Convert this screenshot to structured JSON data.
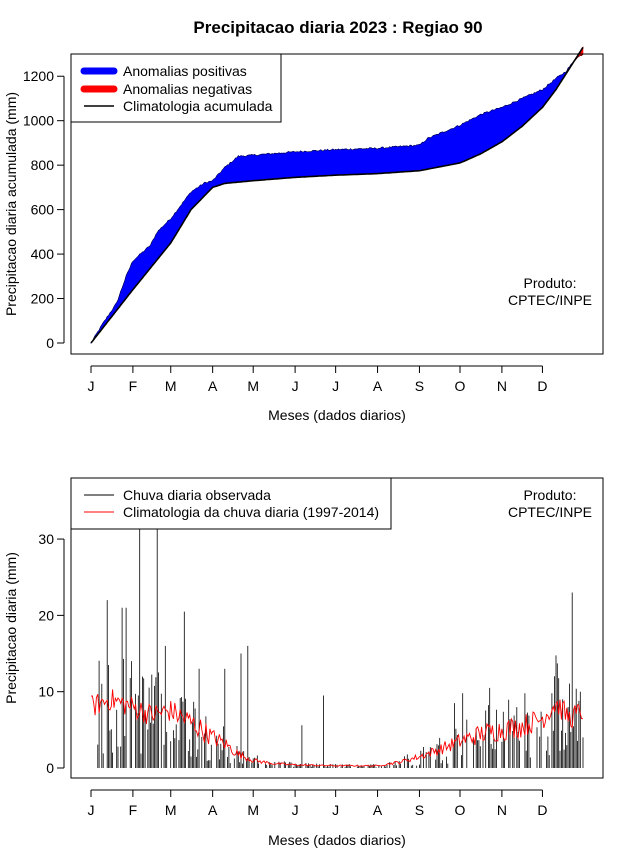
{
  "page_title": "Precipitacao diaria 2023 : Regiao 90",
  "colors": {
    "positive": "#0000ff",
    "negative": "#ff0000",
    "climatology_line": "#000000",
    "observed": "#000000",
    "climatology_daily": "#ff0000"
  },
  "chart_data": [
    {
      "type": "area",
      "title": "Precipitacao diaria 2023 : Regiao 90",
      "xlabel": "Meses (dados diarios)",
      "ylabel": "Precipitacao diaria acumulada (mm)",
      "xlim": [
        1,
        365
      ],
      "ylim": [
        0,
        1300
      ],
      "yticks": [
        0,
        200,
        400,
        600,
        800,
        1000,
        1200
      ],
      "month_ticks": [
        1,
        32,
        60,
        91,
        121,
        152,
        182,
        213,
        244,
        274,
        305,
        335
      ],
      "month_labels": [
        "J",
        "F",
        "M",
        "A",
        "M",
        "J",
        "J",
        "A",
        "S",
        "O",
        "N",
        "D"
      ],
      "legend": [
        "Anomalias positivas",
        "Anomalias negativas",
        "Climatologia acumulada"
      ],
      "annotation": [
        "Produto:",
        "CPTEC/INPE"
      ],
      "climatology_cumulative": {
        "x": [
          1,
          32,
          60,
          75,
          91,
          100,
          121,
          152,
          182,
          213,
          244,
          274,
          289,
          305,
          320,
          335,
          345,
          365
        ],
        "y": [
          0,
          240,
          450,
          600,
          700,
          718,
          730,
          745,
          755,
          762,
          775,
          810,
          850,
          905,
          975,
          1060,
          1140,
          1330
        ]
      },
      "observed_cumulative": {
        "x": [
          1,
          10,
          20,
          27,
          32,
          45,
          50,
          60,
          75,
          85,
          91,
          100,
          110,
          121,
          152,
          182,
          213,
          244,
          250,
          274,
          290,
          305,
          320,
          335,
          345,
          352,
          360,
          365
        ],
        "y": [
          0,
          90,
          180,
          300,
          370,
          440,
          500,
          560,
          680,
          720,
          730,
          790,
          840,
          845,
          860,
          870,
          876,
          890,
          920,
          980,
          1030,
          1060,
          1100,
          1140,
          1190,
          1220,
          1280,
          1300
        ]
      }
    },
    {
      "type": "bar",
      "title": "",
      "xlabel": "Meses (dados diarios)",
      "ylabel": "Precipitacao diaria (mm)",
      "xlim": [
        1,
        365
      ],
      "ylim": [
        0,
        38
      ],
      "yticks": [
        0,
        10,
        20,
        30
      ],
      "month_ticks": [
        1,
        32,
        60,
        91,
        121,
        152,
        182,
        213,
        244,
        274,
        305,
        335
      ],
      "month_labels": [
        "J",
        "F",
        "M",
        "A",
        "M",
        "J",
        "J",
        "A",
        "S",
        "O",
        "N",
        "D"
      ],
      "legend": [
        "Chuva diaria observada",
        "Climatologia da chuva diaria (1997-2014)"
      ],
      "annotation": [
        "Produto:",
        "CPTEC/INPE"
      ],
      "observed_peaks": [
        {
          "day": 13,
          "value": 22
        },
        {
          "day": 24,
          "value": 21
        },
        {
          "day": 27,
          "value": 21
        },
        {
          "day": 37,
          "value": 38
        },
        {
          "day": 50,
          "value": 38
        },
        {
          "day": 56,
          "value": 16
        },
        {
          "day": 70,
          "value": 20.5
        },
        {
          "day": 81,
          "value": 13
        },
        {
          "day": 100,
          "value": 13
        },
        {
          "day": 112,
          "value": 15
        },
        {
          "day": 117,
          "value": 16
        },
        {
          "day": 157,
          "value": 5.6
        },
        {
          "day": 173,
          "value": 9.5
        },
        {
          "day": 270,
          "value": 8.5
        },
        {
          "day": 276,
          "value": 9.8
        },
        {
          "day": 296,
          "value": 10.5
        },
        {
          "day": 322,
          "value": 9.8
        },
        {
          "day": 350,
          "value": 9
        },
        {
          "day": 357,
          "value": 23
        },
        {
          "day": 363,
          "value": 10
        }
      ],
      "climatology_daily": {
        "x": [
          1,
          15,
          32,
          45,
          60,
          75,
          91,
          100,
          110,
          121,
          135,
          152,
          182,
          213,
          230,
          244,
          260,
          274,
          290,
          305,
          320,
          335,
          345,
          355,
          365
        ],
        "y": [
          8,
          9,
          8,
          7,
          7.5,
          6,
          4,
          3.2,
          1.8,
          1,
          0.6,
          0.4,
          0.3,
          0.3,
          0.8,
          1.5,
          2.5,
          3.5,
          4.5,
          5,
          5.5,
          6.5,
          8.5,
          6.5,
          7.5
        ]
      }
    }
  ]
}
